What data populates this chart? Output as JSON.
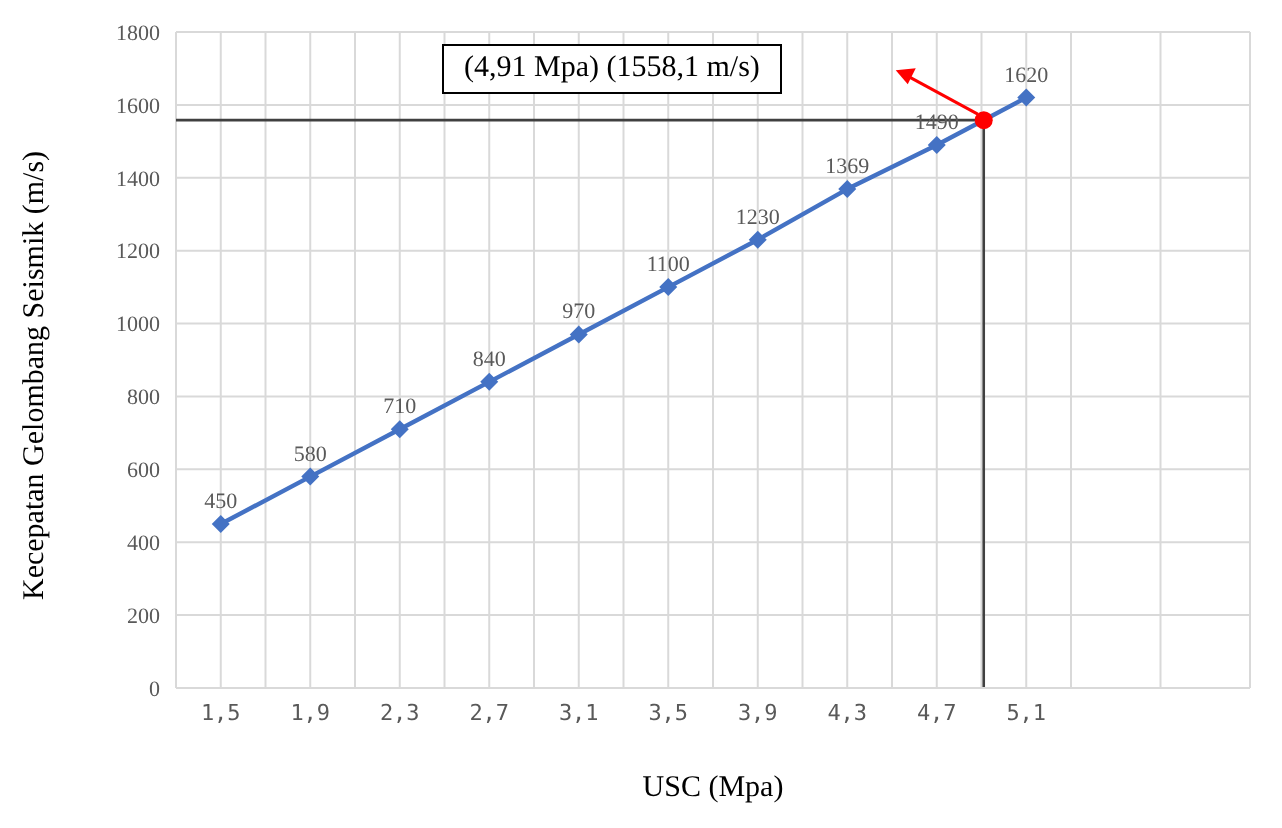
{
  "chart_data": {
    "type": "line",
    "xlabel": "USC (Mpa)",
    "ylabel": "Kecepatan Gelombang Seismik (m/s)",
    "xlim": [
      1.3,
      6.1
    ],
    "xticks": [
      {
        "value": 1.3,
        "label": null
      },
      {
        "value": 1.5,
        "label": "1,5"
      },
      {
        "value": 1.7,
        "label": null
      },
      {
        "value": 1.9,
        "label": "1,9"
      },
      {
        "value": 2.1,
        "label": null
      },
      {
        "value": 2.3,
        "label": "2,3"
      },
      {
        "value": 2.5,
        "label": null
      },
      {
        "value": 2.7,
        "label": "2,7"
      },
      {
        "value": 2.9,
        "label": null
      },
      {
        "value": 3.1,
        "label": "3,1"
      },
      {
        "value": 3.3,
        "label": null
      },
      {
        "value": 3.5,
        "label": "3,5"
      },
      {
        "value": 3.7,
        "label": null
      },
      {
        "value": 3.9,
        "label": "3,9"
      },
      {
        "value": 4.1,
        "label": null
      },
      {
        "value": 4.3,
        "label": "4,3"
      },
      {
        "value": 4.5,
        "label": null
      },
      {
        "value": 4.7,
        "label": "4,7"
      },
      {
        "value": 4.9,
        "label": null
      },
      {
        "value": 5.1,
        "label": "5,1"
      },
      {
        "value": 5.3,
        "label": null
      },
      {
        "value": 5.7,
        "label": null
      },
      {
        "value": 6.1,
        "label": null
      }
    ],
    "ylim": [
      0,
      1800
    ],
    "yticks": [
      0,
      200,
      400,
      600,
      800,
      1000,
      1200,
      1400,
      1600,
      1800
    ],
    "grid": true,
    "marker": "diamond",
    "series": [
      {
        "color": "#4472c4",
        "x": [
          1.5,
          1.9,
          2.3,
          2.7,
          3.1,
          3.5,
          3.9,
          4.3,
          4.7,
          5.1
        ],
        "values": [
          450,
          580,
          710,
          840,
          970,
          1100,
          1230,
          1369,
          1490,
          1620
        ],
        "value_labels": [
          "450",
          "580",
          "710",
          "840",
          "970",
          "1100",
          "1230",
          "1369",
          "1490",
          "1620"
        ]
      },
      {
        "type": "scatter",
        "color": "#ff0000",
        "x": [
          4.91
        ],
        "values": [
          1558.1
        ],
        "marker": "circle"
      }
    ],
    "ref_lines": [
      {
        "axis": "y",
        "value": 1558.1,
        "color": "#404040"
      },
      {
        "axis": "x",
        "value": 4.91,
        "color": "#404040"
      }
    ],
    "annotations": [
      "(4,91 Mpa) (1558,1 m/s)"
    ]
  }
}
